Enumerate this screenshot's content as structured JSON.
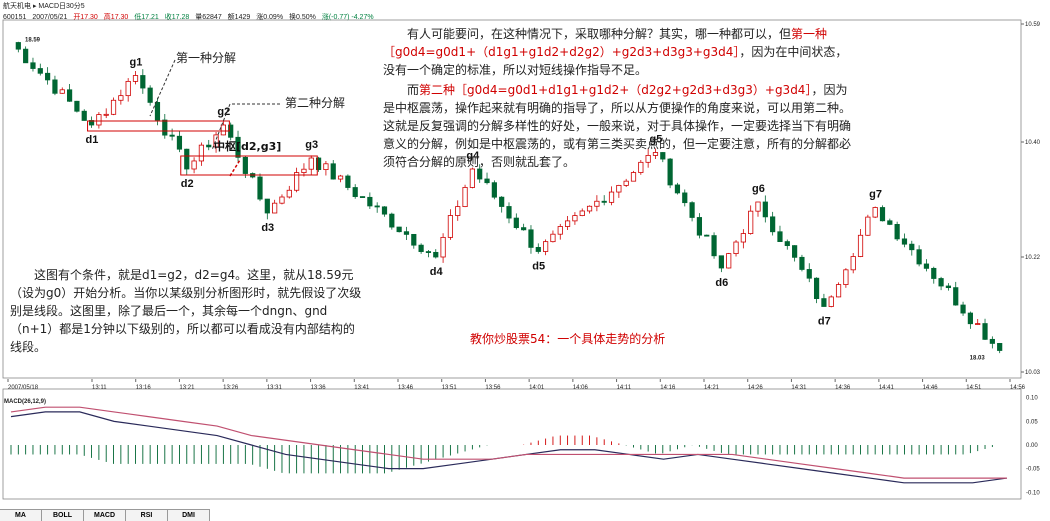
{
  "header": {
    "line1": "航天机电 ▸ MACD日30分5",
    "code": "600151",
    "date": "2007/05/21",
    "open": "开17.30",
    "high": "高17.30",
    "low": "低17.21",
    "close": "收17.28",
    "volume": "量62847",
    "amount": "额1429",
    "change": "涨0.09%",
    "turnover": "换0.50%",
    "extra": "涨(-0.77) -4.27%"
  },
  "price_labels": {
    "high": "18.59",
    "low": "18.03"
  },
  "wave_labels": [
    "g1",
    "g2",
    "g3",
    "g4",
    "g5",
    "g6",
    "g7",
    "d1",
    "d2",
    "d3",
    "d4",
    "d5",
    "d6",
    "d7"
  ],
  "annotations": {
    "first": "第一种分解",
    "second": "第二种分解",
    "zhongshu": "中枢[d2,g3]"
  },
  "text_right": {
    "p1a": "有人可能要问，在这种情况下，采取哪种分解？其实，哪一种都可以，但",
    "p1b": "第一种",
    "p1c": "［g0d4=g0d1+（d1g1+g1d2+d2g2）+g2d3+d3g3+g3d4］",
    "p1d": "，因为在中间状态，没有一个确定的标准，所以对短线操作指导不足。",
    "p2a": "而",
    "p2b": "第二种",
    "p2c": "［g0d4=g0d1+d1g1+g1d2+（d2g2+g2d3+d3g3）+g3d4］",
    "p2d": "，因为是中枢震荡，操作起来就有明确的指导了，所以从方便操作的角度来说，可以用第二种。这就是反复强调的分解多样性的好处，一般来说，对于具体操作，一定要选择当下有明确意义的分解，例如是中枢震荡的，或有第三类买卖点的，但一定要注意，所有的分解都必须符合分解的原则，否则就乱套了。"
  },
  "text_left": "这图有个条件，就是d1=g2，d2=g4。这里，就从18.59元（设为g0）开始分析。当你以某级别分析图形时，就先假设了次级别是线段。这图里，除了最后一个，其余每一个dngn、gnd（n+1）都是1分钟以下级别的，所以都可以看成没有内部结构的线段。",
  "caption": "教你炒股票54：一个具体走势的分析",
  "right_axis": [
    "10.59",
    "10.40",
    "10.22",
    "10.03"
  ],
  "macd_axis": [
    "0.10",
    "0.05",
    "0.00",
    "-0.05",
    "-0.10"
  ],
  "macd_label": "MACD(26,12,9)",
  "time_axis": [
    "2007/05/18",
    "13:11",
    "13:16",
    "13:21",
    "13:26",
    "13:31",
    "13:36",
    "13:41",
    "13:46",
    "13:51",
    "13:56",
    "14:01",
    "14:06",
    "14:11",
    "14:16",
    "14:21",
    "14:26",
    "14:31",
    "14:36",
    "14:41",
    "14:46",
    "14:51",
    "14:56"
  ],
  "tabs": [
    "MA",
    "BOLL",
    "MACD",
    "RSI",
    "DMI"
  ],
  "colors": {
    "up": "#d00000",
    "down": "#006633",
    "annotation": "#d00000",
    "dif": "#2a2a5a",
    "dea": "#c05070"
  },
  "chart_data": {
    "type": "candlestick",
    "price_range": [
      17.98,
      18.62
    ],
    "pivots": [
      {
        "name": "g0",
        "value": 18.59
      },
      {
        "name": "d1",
        "value": 18.44
      },
      {
        "name": "g1",
        "value": 18.53
      },
      {
        "name": "d2",
        "value": 18.36
      },
      {
        "name": "g2",
        "value": 18.44
      },
      {
        "name": "d3",
        "value": 18.28
      },
      {
        "name": "g3",
        "value": 18.38
      },
      {
        "name": "d4",
        "value": 18.2
      },
      {
        "name": "g4",
        "value": 18.36
      },
      {
        "name": "d5",
        "value": 18.21
      },
      {
        "name": "g5",
        "value": 18.39
      },
      {
        "name": "d6",
        "value": 18.18
      },
      {
        "name": "g6",
        "value": 18.3
      },
      {
        "name": "d7",
        "value": 18.11
      },
      {
        "name": "g7",
        "value": 18.29
      },
      {
        "name": "end",
        "value": 18.03
      }
    ],
    "pivot_bars": [
      0,
      11,
      17,
      24,
      29,
      35,
      41,
      58,
      63,
      72,
      88,
      97,
      102,
      111,
      118,
      135
    ],
    "macd_dif": [
      0.06,
      0.07,
      0.07,
      0.05,
      0.04,
      0.03,
      0.02,
      0.0,
      -0.02,
      -0.03,
      -0.04,
      -0.05,
      -0.05,
      -0.04,
      -0.03,
      -0.02,
      -0.01,
      -0.01,
      -0.02,
      -0.03,
      -0.02,
      -0.03,
      -0.04,
      -0.05,
      -0.06,
      -0.07,
      -0.08,
      -0.08,
      -0.08,
      -0.07
    ],
    "macd_dea": [
      0.07,
      0.08,
      0.08,
      0.07,
      0.06,
      0.05,
      0.04,
      0.02,
      0.01,
      0.0,
      -0.01,
      -0.02,
      -0.03,
      -0.03,
      -0.03,
      -0.02,
      -0.02,
      -0.02,
      -0.02,
      -0.02,
      -0.02,
      -0.02,
      -0.03,
      -0.04,
      -0.05,
      -0.06,
      -0.07,
      -0.07,
      -0.07,
      -0.07
    ]
  }
}
